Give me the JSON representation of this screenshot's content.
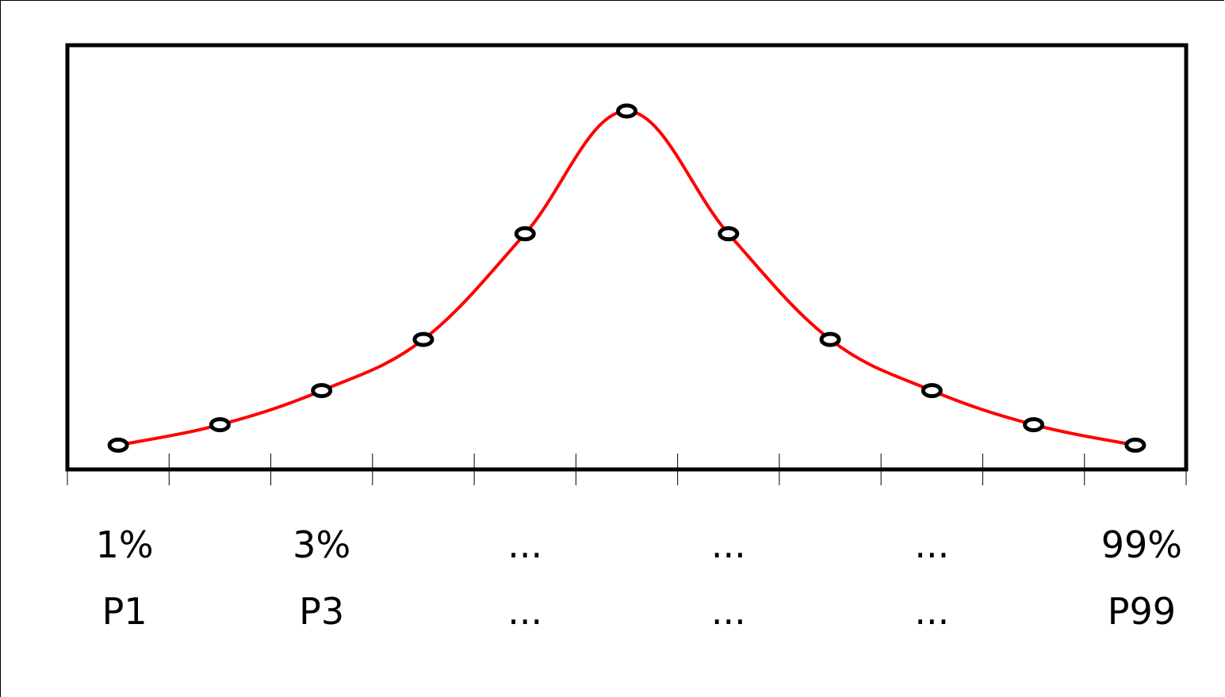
{
  "chart_data": {
    "type": "line",
    "x": [
      1,
      2,
      3,
      4,
      5,
      6,
      7,
      8,
      9,
      10,
      11
    ],
    "y": [
      0.02,
      0.08,
      0.18,
      0.33,
      0.64,
      1.0,
      0.64,
      0.33,
      0.18,
      0.08,
      0.02
    ],
    "ylim": [
      0,
      1.05
    ],
    "xlim": [
      0.5,
      11.5
    ],
    "grid": false,
    "legend": "none",
    "line_color": "#ff0000",
    "marker_color": "#000000",
    "marker": "open-circle",
    "tick_count": 12,
    "category_labels": [
      {
        "x": 1,
        "percent": "1%",
        "percentile": "P1"
      },
      {
        "x": 3,
        "percent": "3%",
        "percentile": "P3"
      },
      {
        "x": 5,
        "percent": "...",
        "percentile": "..."
      },
      {
        "x": 7,
        "percent": "...",
        "percentile": "..."
      },
      {
        "x": 9,
        "percent": "...",
        "percentile": "..."
      },
      {
        "x": 11,
        "percent": "99%",
        "percentile": "P99"
      }
    ]
  }
}
